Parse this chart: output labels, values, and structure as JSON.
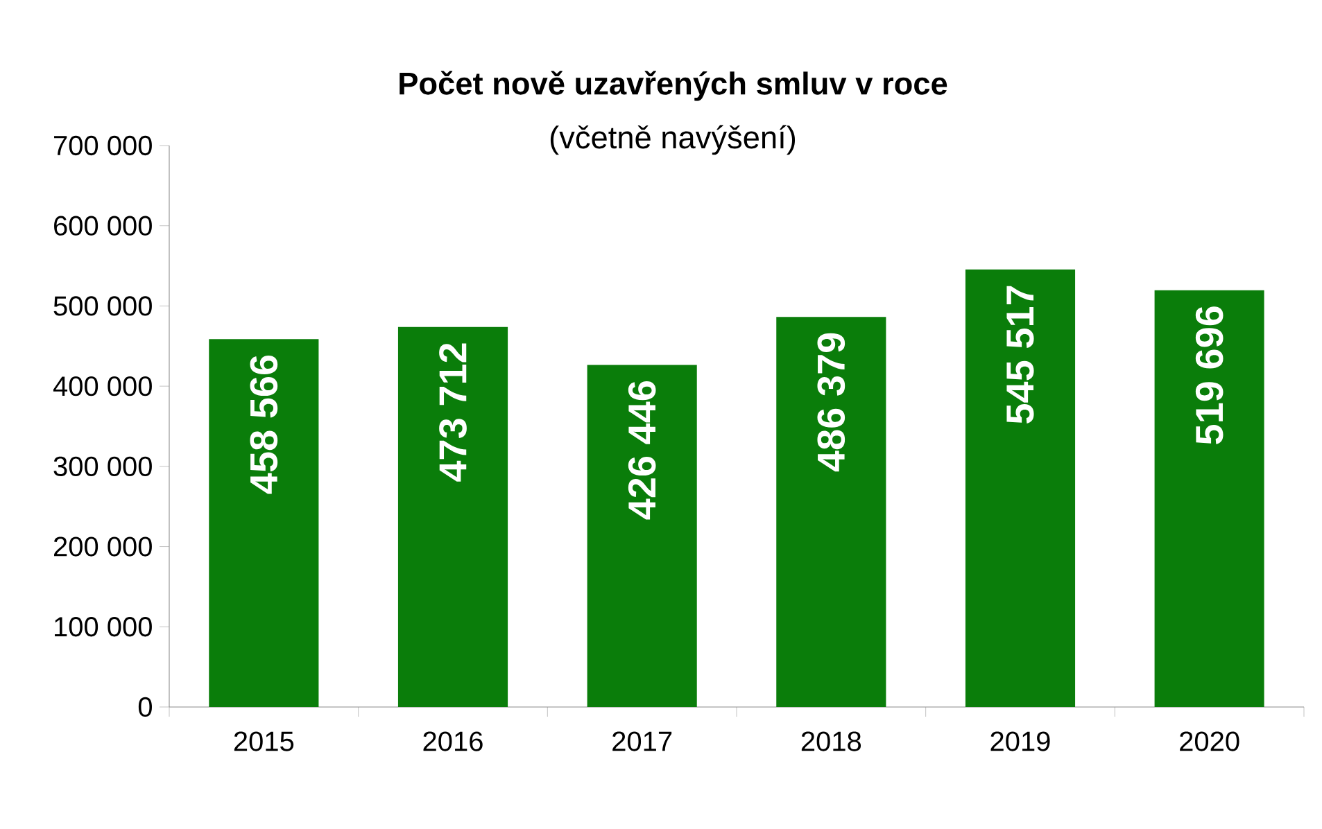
{
  "chart_data": {
    "type": "bar",
    "title": "Počet nově uzavřených smluv v roce",
    "subtitle": "(včetně navýšení)",
    "categories": [
      "2015",
      "2016",
      "2017",
      "2018",
      "2019",
      "2020"
    ],
    "values": [
      458566,
      473712,
      426446,
      486379,
      545517,
      519696
    ],
    "value_labels": [
      "458 566",
      "473 712",
      "426 446",
      "486 379",
      "545 517",
      "519 696"
    ],
    "color": "#0a7d0a",
    "ylim": [
      0,
      700000
    ],
    "yticks": [
      {
        "value": 0,
        "label": "0"
      },
      {
        "value": 100000,
        "label": "100 000"
      },
      {
        "value": 200000,
        "label": "200 000"
      },
      {
        "value": 300000,
        "label": "300 000"
      },
      {
        "value": 400000,
        "label": "400 000"
      },
      {
        "value": 500000,
        "label": "500 000"
      },
      {
        "value": 600000,
        "label": "600 000"
      },
      {
        "value": 700000,
        "label": "700 000"
      }
    ],
    "grid": false
  }
}
